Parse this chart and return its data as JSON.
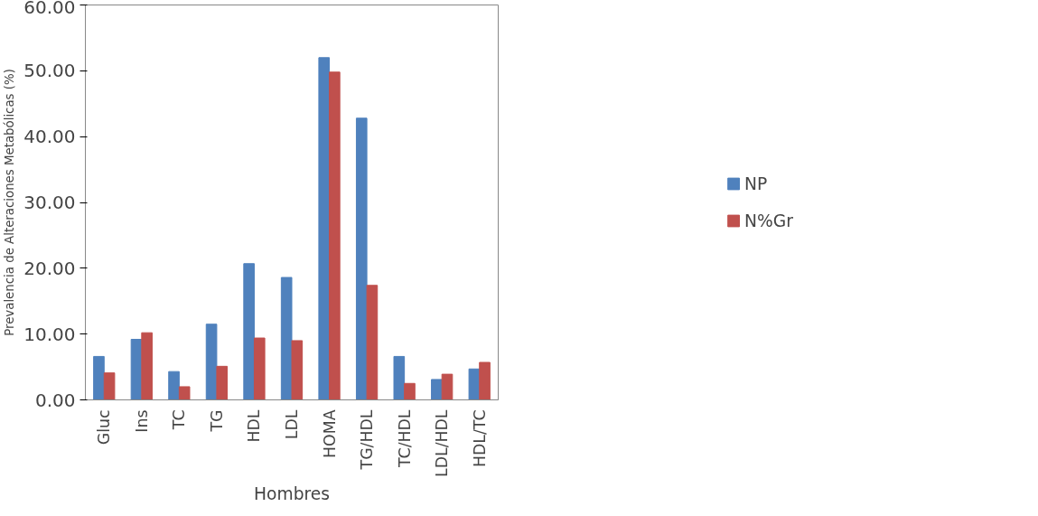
{
  "chart_data": {
    "type": "bar",
    "xlabel": "Hombres",
    "ylabel": "Prevalencia de Alteraciones Metabólicas (%)",
    "categories": [
      "Gluc",
      "Ins",
      "TC",
      "TG",
      "HDL",
      "LDL",
      "HOMA",
      "TG/HDL",
      "TC/HDL",
      "LDL/HDL",
      "HDL/TC"
    ],
    "series": [
      {
        "name": "NP",
        "color": "#4f81bd",
        "values": [
          6.6,
          9.2,
          4.3,
          11.5,
          20.7,
          18.6,
          52.0,
          42.8,
          6.6,
          3.1,
          4.7
        ]
      },
      {
        "name": "N%Gr",
        "color": "#c0504d",
        "values": [
          4.1,
          10.2,
          2.0,
          5.1,
          9.4,
          9.0,
          49.8,
          17.4,
          2.5,
          3.9,
          5.7
        ]
      }
    ],
    "ylim": [
      0,
      60
    ],
    "yticks": [
      {
        "value": 0,
        "label": "0.00"
      },
      {
        "value": 10,
        "label": "10.00"
      },
      {
        "value": 20,
        "label": "20.00"
      },
      {
        "value": 30,
        "label": "30.00"
      },
      {
        "value": 40,
        "label": "40.00"
      },
      {
        "value": 50,
        "label": "50.00"
      },
      {
        "value": 60,
        "label": "60.00"
      }
    ],
    "grid": false,
    "legend": "right"
  }
}
